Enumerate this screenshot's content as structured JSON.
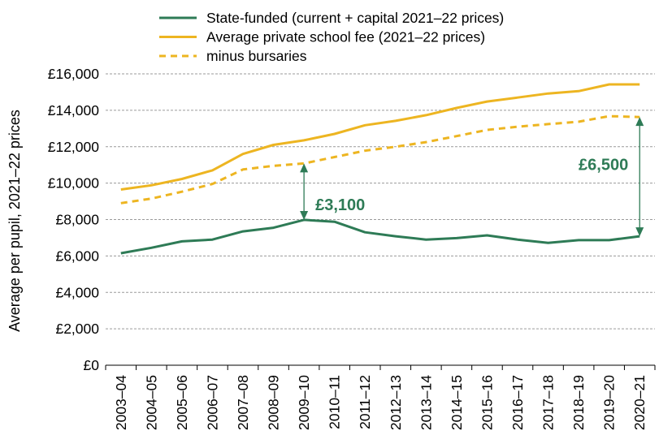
{
  "chart_data": {
    "type": "line",
    "categories": [
      "2003–04",
      "2004–05",
      "2005–06",
      "2006–07",
      "2007–08",
      "2008–09",
      "2009–10",
      "2010–11",
      "2011–12",
      "2012–13",
      "2013–14",
      "2014–15",
      "2015–16",
      "2016–17",
      "2017–18",
      "2018–19",
      "2019–20",
      "2020–21"
    ],
    "series": [
      {
        "name": "State-funded (current + capital 2021–22 prices)",
        "color": "#2e7b56",
        "dash": false,
        "values": [
          6150,
          6450,
          6800,
          6900,
          7350,
          7550,
          7980,
          7880,
          7300,
          7080,
          6900,
          6980,
          7130,
          6900,
          6720,
          6870,
          6870,
          7080
        ]
      },
      {
        "name": "Average private school fee (2021–22 prices)",
        "color": "#edb521",
        "dash": false,
        "values": [
          9650,
          9880,
          10230,
          10700,
          11600,
          12100,
          12350,
          12700,
          13180,
          13420,
          13730,
          14130,
          14480,
          14700,
          14920,
          15050,
          15420,
          15420
        ]
      },
      {
        "name": "minus bursaries",
        "color": "#edb521",
        "dash": true,
        "values": [
          8900,
          9150,
          9530,
          9950,
          10750,
          10950,
          11080,
          11430,
          11780,
          12000,
          12250,
          12580,
          12920,
          13100,
          13240,
          13370,
          13680,
          13630
        ]
      }
    ],
    "ylabel": "Average per pupil, 2021–22 prices",
    "xlabel": "",
    "ylim": [
      0,
      16000
    ],
    "yticks": [
      0,
      2000,
      4000,
      6000,
      8000,
      10000,
      12000,
      14000,
      16000
    ],
    "ytick_labels": [
      "£0",
      "£2,000",
      "£4,000",
      "£6,000",
      "£8,000",
      "£10,000",
      "£12,000",
      "£14,000",
      "£16,000"
    ],
    "grid": "horizontal dashed",
    "legend_position": "top",
    "annotations": [
      {
        "text": "£3,100",
        "category": "2009–10",
        "from": 7980,
        "to": 11080,
        "label_side": "right"
      },
      {
        "text": "£6,500",
        "category": "2020–21",
        "from": 7080,
        "to": 13630,
        "label_side": "left"
      }
    ],
    "annotation_color": "#2e7b56"
  }
}
